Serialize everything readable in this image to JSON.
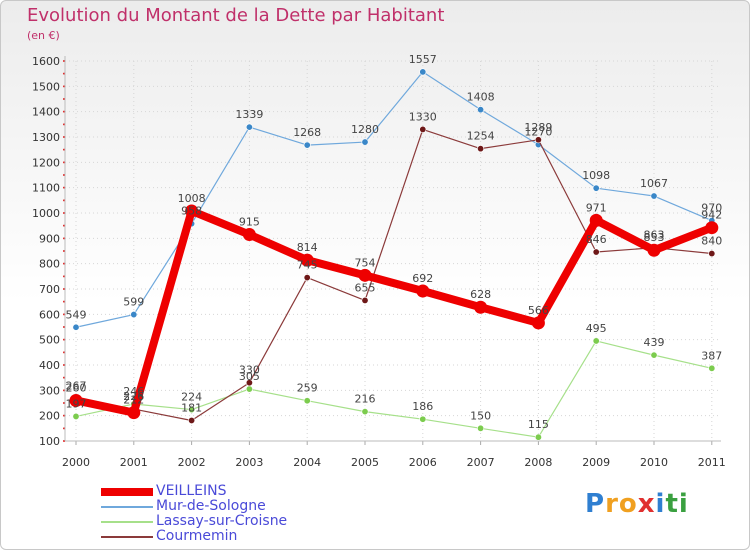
{
  "header": {
    "title": "Evolution du Montant de la Dette par Habitant",
    "subtitle": "(en €)"
  },
  "chart_data": {
    "type": "line",
    "title": "Evolution du Montant de la Dette par Habitant",
    "subtitle": "(en €)",
    "xlabel": "",
    "ylabel": "",
    "x": [
      "2000",
      "2001",
      "2002",
      "2003",
      "2004",
      "2005",
      "2006",
      "2007",
      "2008",
      "2009",
      "2010",
      "2011"
    ],
    "ylim": [
      100,
      1600
    ],
    "yticks": [
      "100",
      "200",
      "300",
      "400",
      "500",
      "600",
      "700",
      "800",
      "900",
      "1000",
      "1100",
      "1200",
      "1300",
      "1400",
      "1500",
      "1600"
    ],
    "grid": true,
    "legend_position": "bottom-left",
    "series": [
      {
        "name": "VEILLEINS",
        "color": "#ee0000",
        "marker": "#ee0000",
        "values": [
          260,
          212,
          1008,
          915,
          814,
          754,
          692,
          628,
          566,
          971,
          853,
          942
        ],
        "labels": [
          "260",
          "212",
          "1008",
          "915",
          "814",
          "754",
          "692",
          "628",
          "566",
          "971",
          "853",
          "942"
        ]
      },
      {
        "name": "Mur-de-Sologne",
        "color": "#6fa8dc",
        "marker": "#3a87c8",
        "values": [
          549,
          599,
          958,
          1339,
          1268,
          1280,
          1557,
          1408,
          1270,
          1098,
          1067,
          970
        ],
        "labels": [
          "549",
          "599",
          "958",
          "1339",
          "1268",
          "1280",
          "1557",
          "1408",
          "1270",
          "1098",
          "1067",
          "970"
        ]
      },
      {
        "name": "Lassay-sur-Croisne",
        "color": "#a6e08a",
        "marker": "#7ccc4e",
        "values": [
          197,
          246,
          224,
          305,
          259,
          216,
          186,
          150,
          115,
          495,
          439,
          387
        ],
        "labels": [
          "197",
          "246",
          "224",
          "305",
          "259",
          "216",
          "186",
          "150",
          "115",
          "495",
          "439",
          "387"
        ]
      },
      {
        "name": "Courmemin",
        "color": "#8b3a3a",
        "marker": "#6e1818",
        "values": [
          267,
          226,
          181,
          330,
          745,
          655,
          1330,
          1254,
          1289,
          846,
          863,
          840
        ],
        "labels": [
          "267",
          "226",
          "181",
          "330",
          "745",
          "655",
          "1330",
          "1254",
          "1289",
          "846",
          "863",
          "840"
        ]
      }
    ]
  },
  "legend": {
    "items": [
      {
        "label": "VEILLEINS",
        "color": "#ee0000"
      },
      {
        "label": "Mur-de-Sologne",
        "color": "#6fa8dc"
      },
      {
        "label": "Lassay-sur-Croisne",
        "color": "#a6e08a"
      },
      {
        "label": "Courmemin",
        "color": "#8b3a3a"
      }
    ]
  },
  "logo": {
    "text": "Proxiti",
    "letters": [
      {
        "ch": "P",
        "color": "#2f7fd1"
      },
      {
        "ch": "r",
        "color": "#f0a020"
      },
      {
        "ch": "o",
        "color": "#f0a020"
      },
      {
        "ch": "x",
        "color": "#e03030"
      },
      {
        "ch": "i",
        "color": "#2f7fd1"
      },
      {
        "ch": "t",
        "color": "#3aa040"
      },
      {
        "ch": "i",
        "color": "#3aa040"
      }
    ]
  }
}
